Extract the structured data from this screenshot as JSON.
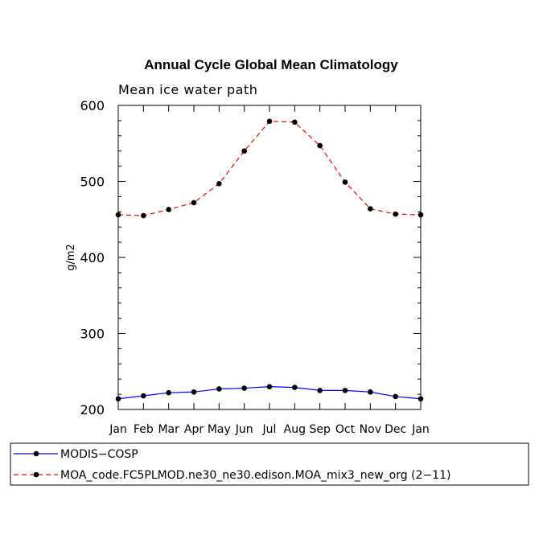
{
  "chart_data": {
    "type": "line",
    "title": "Annual Cycle Global Mean Climatology",
    "subtitle": "Mean ice water path",
    "xlabel": "",
    "ylabel": "g/m2",
    "ylim": [
      200,
      600
    ],
    "yticks": [
      "200",
      "300",
      "400",
      "500",
      "600"
    ],
    "categories": [
      "Jan",
      "Feb",
      "Mar",
      "Apr",
      "May",
      "Jun",
      "Jul",
      "Aug",
      "Sep",
      "Oct",
      "Nov",
      "Dec",
      "Jan"
    ],
    "series": [
      {
        "name": "MODIS−COSP",
        "color": "#0000ff",
        "dash": "solid",
        "values": [
          214,
          218,
          222,
          223,
          227,
          228,
          230,
          229,
          225,
          225,
          223,
          217,
          214
        ]
      },
      {
        "name": "MOA_code.FC5PLMOD.ne30_ne30.edison.MOA_mix3_new_org (2−11)",
        "color": "#ff0000",
        "dash": "dashed",
        "values": [
          456,
          455,
          463,
          472,
          497,
          540,
          579,
          578,
          547,
          499,
          464,
          457,
          456
        ]
      }
    ],
    "legend_position": "bottom"
  }
}
